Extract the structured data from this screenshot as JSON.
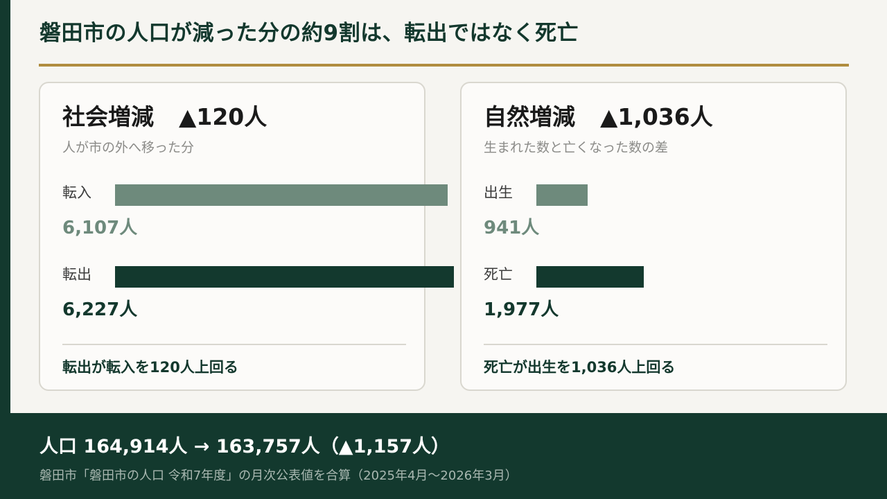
{
  "title": "磐田市の人口が減った分の約9割は、転出ではなく死亡",
  "colors": {
    "background": "#f6f5f1",
    "dark_green": "#13392e",
    "muted_green": "#6e8a7c",
    "gold_rule": "#b08d3f",
    "card_border": "#d9d7cf"
  },
  "chart_data": [
    {
      "type": "bar",
      "orientation": "horizontal",
      "title": "社会増減",
      "delta": "▲120人",
      "subtitle": "人が市の外へ移った分",
      "categories": [
        "転入",
        "転出"
      ],
      "values": [
        6107,
        6227
      ],
      "value_labels": [
        "6,107人",
        "6,227人"
      ],
      "unit": "人",
      "xlim": [
        0,
        6227
      ],
      "note": "転出が転入を120人上回る"
    },
    {
      "type": "bar",
      "orientation": "horizontal",
      "title": "自然増減",
      "delta": "▲1,036人",
      "subtitle": "生まれた数と亡くなった数の差",
      "categories": [
        "出生",
        "死亡"
      ],
      "values": [
        941,
        1977
      ],
      "value_labels": [
        "941人",
        "1,977人"
      ],
      "unit": "人",
      "xlim": [
        0,
        6227
      ],
      "note": "死亡が出生を1,036人上回る"
    }
  ],
  "footer": {
    "population_label": "人口",
    "population_before": "164,914人",
    "arrow": "→",
    "population_after": "163,757人",
    "change": "（▲1,157人）",
    "source": "磐田市「磐田市の人口 令和7年度」の月次公表値を合算（2025年4月～2026年3月）"
  }
}
